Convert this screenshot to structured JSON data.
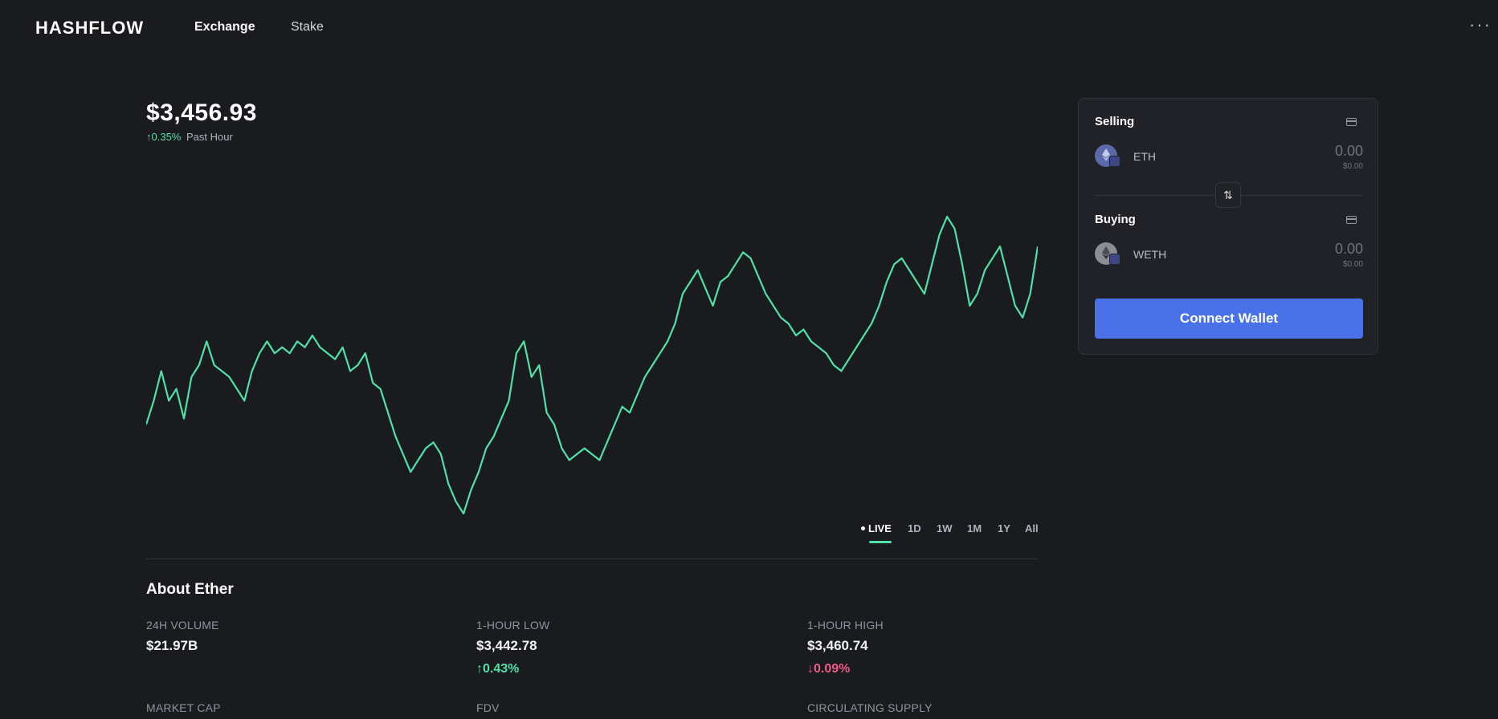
{
  "header": {
    "logo": "HASHFLOW",
    "nav": [
      {
        "label": "Exchange"
      },
      {
        "label": "Stake"
      }
    ],
    "more_icon": "more-horizontal-icon"
  },
  "price": {
    "value": "$3,456.93",
    "change": "↑0.35%",
    "change_label": "Past Hour"
  },
  "chart_data": {
    "type": "line",
    "series": [
      {
        "values": [
          3438,
          3442,
          3447,
          3442,
          3444,
          3439,
          3446,
          3448,
          3452,
          3448,
          3447,
          3446,
          3444,
          3442,
          3447,
          3450,
          3452,
          3450,
          3451,
          3450,
          3452,
          3451,
          3453,
          3451,
          3450,
          3449,
          3451,
          3447,
          3448,
          3450,
          3445,
          3444,
          3440,
          3436,
          3433,
          3430,
          3432,
          3434,
          3435,
          3433,
          3428,
          3425,
          3423,
          3427,
          3430,
          3434,
          3436,
          3439,
          3442,
          3450,
          3452,
          3446,
          3448,
          3440,
          3438,
          3434,
          3432,
          3433,
          3434,
          3433,
          3432,
          3435,
          3438,
          3441,
          3440,
          3443,
          3446,
          3448,
          3450,
          3452,
          3455,
          3460,
          3462,
          3464,
          3461,
          3458,
          3462,
          3463,
          3465,
          3467,
          3466,
          3463,
          3460,
          3458,
          3456,
          3455,
          3453,
          3454,
          3452,
          3451,
          3450,
          3448,
          3447,
          3449,
          3451,
          3453,
          3455,
          3458,
          3462,
          3465,
          3466,
          3464,
          3462,
          3460,
          3465,
          3470,
          3473,
          3471,
          3465,
          3458,
          3460,
          3464,
          3466,
          3468,
          3463,
          3458,
          3456,
          3460,
          3468
        ],
        "color": "#4ee2a6"
      }
    ],
    "ranges": [
      "LIVE",
      "1D",
      "1W",
      "1M",
      "1Y",
      "All"
    ],
    "active_range": "LIVE"
  },
  "about": {
    "title": "About Ether",
    "stats": [
      {
        "label": "24H VOLUME",
        "value": "$21.97B",
        "change": ""
      },
      {
        "label": "1-HOUR LOW",
        "value": "$3,442.78",
        "change": "↑0.43%"
      },
      {
        "label": "1-HOUR HIGH",
        "value": "$3,460.74",
        "change": "↓0.09%"
      },
      {
        "label": "MARKET CAP",
        "value": "",
        "change": ""
      },
      {
        "label": "FDV",
        "value": "",
        "change": ""
      },
      {
        "label": "CIRCULATING SUPPLY",
        "value": "",
        "change": ""
      }
    ]
  },
  "swap": {
    "selling_label": "Selling",
    "selling_token": "ETH",
    "selling_amount": "0.00",
    "selling_usd": "$0.00",
    "buying_label": "Buying",
    "buying_token": "WETH",
    "buying_amount": "0.00",
    "buying_usd": "$0.00",
    "swap_icon": "swap-arrows-icon",
    "connect_label": "Connect Wallet"
  },
  "colors": {
    "background": "#191b1f",
    "accent_green": "#4ee2a6",
    "accent_red": "#ef5a87",
    "primary_button": "#4a72e8"
  }
}
